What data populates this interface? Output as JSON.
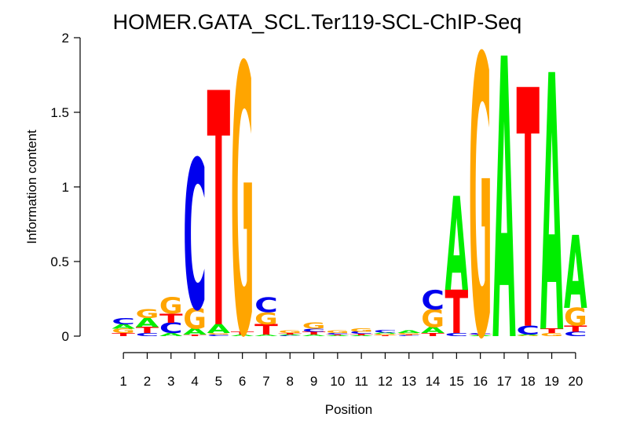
{
  "chart_data": {
    "type": "sequence-logo",
    "title": "HOMER.GATA_SCL.Ter119-SCL-ChIP-Seq",
    "xlabel": "Position",
    "ylabel": "Information content",
    "ylim": [
      0,
      2
    ],
    "yticks": [
      "0",
      "0.5",
      "1",
      "1.5",
      "2"
    ],
    "colors": {
      "A": "#00ee00",
      "C": "#0000ee",
      "G": "#ffa500",
      "T": "#ff0000"
    },
    "positions": [
      {
        "pos": "1",
        "letters": [
          [
            "T",
            0.02
          ],
          [
            "G",
            0.03
          ],
          [
            "A",
            0.03
          ],
          [
            "C",
            0.04
          ]
        ]
      },
      {
        "pos": "2",
        "letters": [
          [
            "C",
            0.02
          ],
          [
            "T",
            0.04
          ],
          [
            "A",
            0.06
          ],
          [
            "G",
            0.06
          ]
        ]
      },
      {
        "pos": "3",
        "letters": [
          [
            "A",
            0.02
          ],
          [
            "C",
            0.07
          ],
          [
            "T",
            0.06
          ],
          [
            "G",
            0.11
          ]
        ]
      },
      {
        "pos": "4",
        "letters": [
          [
            "T",
            0.01
          ],
          [
            "A",
            0.04
          ],
          [
            "G",
            0.14
          ],
          [
            "C",
            1.0
          ]
        ]
      },
      {
        "pos": "5",
        "letters": [
          [
            "C",
            0.01
          ],
          [
            "G",
            0.01
          ],
          [
            "A",
            0.06
          ],
          [
            "T",
            1.57
          ]
        ]
      },
      {
        "pos": "6",
        "letters": [
          [
            "A",
            0.01
          ],
          [
            "T",
            0.02
          ],
          [
            "G",
            1.8
          ]
        ]
      },
      {
        "pos": "7",
        "letters": [
          [
            "A",
            0.01
          ],
          [
            "T",
            0.07
          ],
          [
            "G",
            0.08
          ],
          [
            "C",
            0.1
          ]
        ]
      },
      {
        "pos": "8",
        "letters": [
          [
            "C",
            0.005
          ],
          [
            "A",
            0.005
          ],
          [
            "T",
            0.01
          ],
          [
            "G",
            0.015
          ]
        ]
      },
      {
        "pos": "9",
        "letters": [
          [
            "A",
            0.01
          ],
          [
            "T",
            0.02
          ],
          [
            "C",
            0.02
          ],
          [
            "G",
            0.04
          ]
        ]
      },
      {
        "pos": "10",
        "letters": [
          [
            "A",
            0.005
          ],
          [
            "T",
            0.005
          ],
          [
            "C",
            0.01
          ],
          [
            "G",
            0.015
          ]
        ]
      },
      {
        "pos": "11",
        "letters": [
          [
            "A",
            0.005
          ],
          [
            "T",
            0.01
          ],
          [
            "C",
            0.015
          ],
          [
            "G",
            0.025
          ]
        ]
      },
      {
        "pos": "12",
        "letters": [
          [
            "T",
            0.005
          ],
          [
            "G",
            0.01
          ],
          [
            "A",
            0.01
          ],
          [
            "C",
            0.015
          ]
        ]
      },
      {
        "pos": "13",
        "letters": [
          [
            "C",
            0.005
          ],
          [
            "T",
            0.005
          ],
          [
            "G",
            0.01
          ],
          [
            "A",
            0.015
          ]
        ]
      },
      {
        "pos": "14",
        "letters": [
          [
            "T",
            0.02
          ],
          [
            "A",
            0.04
          ],
          [
            "G",
            0.12
          ],
          [
            "C",
            0.13
          ]
        ]
      },
      {
        "pos": "15",
        "letters": [
          [
            "C",
            0.02
          ],
          [
            "T",
            0.29
          ],
          [
            "A",
            0.63
          ]
        ]
      },
      {
        "pos": "16",
        "letters": [
          [
            "A",
            0.005
          ],
          [
            "T",
            0.005
          ],
          [
            "C",
            0.01
          ],
          [
            "G",
            1.87
          ]
        ]
      },
      {
        "pos": "17",
        "letters": [
          [
            "A",
            1.88
          ]
        ]
      },
      {
        "pos": "18",
        "letters": [
          [
            "G",
            0.005
          ],
          [
            "A",
            0.005
          ],
          [
            "C",
            0.06
          ],
          [
            "T",
            1.6
          ]
        ]
      },
      {
        "pos": "19",
        "letters": [
          [
            "G",
            0.02
          ],
          [
            "T",
            0.03
          ],
          [
            "A",
            1.72
          ]
        ]
      },
      {
        "pos": "20",
        "letters": [
          [
            "C",
            0.03
          ],
          [
            "T",
            0.04
          ],
          [
            "G",
            0.12
          ],
          [
            "A",
            0.49
          ]
        ]
      }
    ]
  }
}
